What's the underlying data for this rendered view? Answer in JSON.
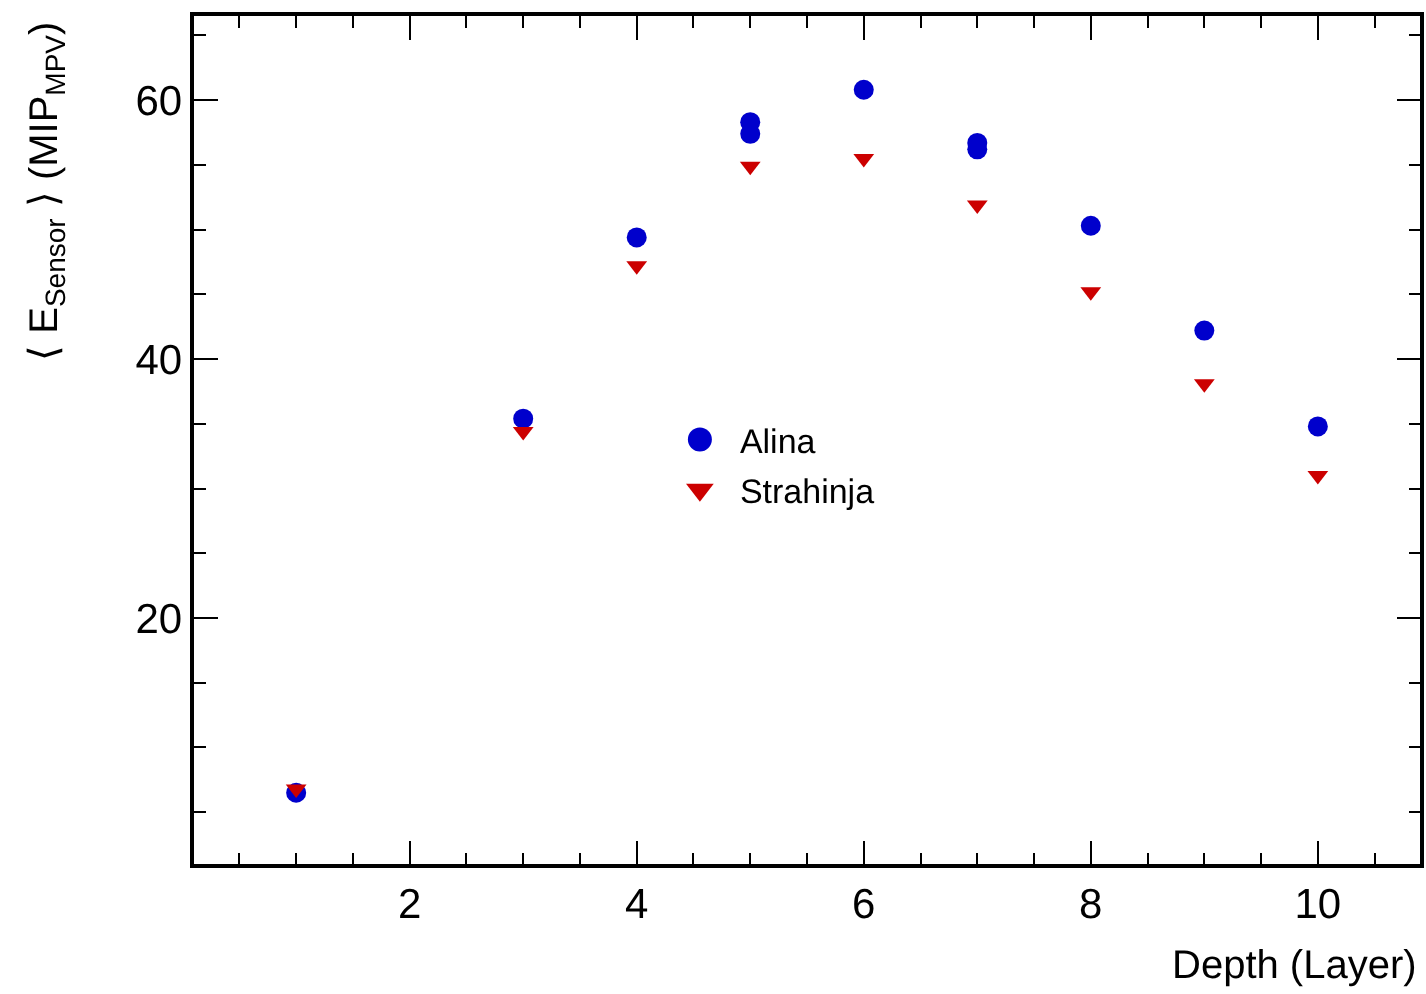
{
  "chart_data": {
    "type": "scatter",
    "xlabel": "Depth (Layer)",
    "ylabel": "⟨ E$_{Sensor}$ ⟩ (MIP$_{MPV}$)",
    "xlim": [
      0.1,
      10.9
    ],
    "ylim": [
      1,
      66.5
    ],
    "xticks": [
      {
        "value": 0.5,
        "label": null
      },
      {
        "value": 1,
        "label": null
      },
      {
        "value": 1.5,
        "label": null
      },
      2,
      {
        "value": 2.5,
        "label": null
      },
      {
        "value": 3,
        "label": null
      },
      {
        "value": 3.5,
        "label": null
      },
      4,
      {
        "value": 4.5,
        "label": null
      },
      {
        "value": 5,
        "label": null
      },
      {
        "value": 5.5,
        "label": null
      },
      6,
      {
        "value": 6.5,
        "label": null
      },
      {
        "value": 7,
        "label": null
      },
      {
        "value": 7.5,
        "label": null
      },
      8,
      {
        "value": 8.5,
        "label": null
      },
      {
        "value": 9,
        "label": null
      },
      {
        "value": 9.5,
        "label": null
      },
      10,
      {
        "value": 10.5,
        "label": null
      }
    ],
    "yticks": [
      {
        "value": 5,
        "label": null
      },
      {
        "value": 10,
        "label": null
      },
      {
        "value": 15,
        "label": null
      },
      20,
      {
        "value": 25,
        "label": null
      },
      {
        "value": 30,
        "label": null
      },
      {
        "value": 35,
        "label": null
      },
      40,
      {
        "value": 45,
        "label": null
      },
      {
        "value": 50,
        "label": null
      },
      {
        "value": 55,
        "label": null
      },
      60,
      {
        "value": 65,
        "label": null
      }
    ],
    "legend": "center",
    "series": [
      {
        "name": "Alina",
        "color": "#0000cc",
        "marker": "circle",
        "x": [
          1,
          3,
          4,
          5,
          5,
          6,
          7,
          7,
          8,
          9,
          10
        ],
        "values": [
          6.5,
          35.4,
          49.4,
          58.3,
          57.4,
          60.8,
          56.7,
          56.2,
          50.3,
          42.2,
          34.8
        ]
      },
      {
        "name": "Strahinja",
        "color": "#cc0000",
        "marker": "triangle",
        "x": [
          1,
          3,
          4,
          5,
          6,
          7,
          8,
          9,
          10
        ],
        "values": [
          6.8,
          34.4,
          47.2,
          54.9,
          55.5,
          51.9,
          45.2,
          38.1,
          31.0
        ]
      }
    ]
  }
}
